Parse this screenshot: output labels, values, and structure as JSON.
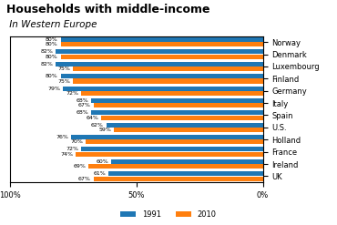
{
  "chart_data": {
    "type": "bar",
    "orientation": "horizontal",
    "title": "Households with middle-income",
    "subtitle": " In Western Europe",
    "categories": [
      "Norway",
      "Denmark",
      "Luxembourg",
      "Finland",
      "Germany",
      "Italy",
      "Spain",
      "U.S.",
      "Holland",
      "France",
      "Ireland",
      "UK"
    ],
    "series": [
      {
        "name": "1991",
        "values": [
          80,
          82,
          82,
          80,
          79,
          68,
          68,
          62,
          76,
          72,
          60,
          61
        ],
        "value_labels": [
          "80%",
          "82%",
          "82%",
          "80%",
          "79%",
          "68%",
          "68%",
          "62%",
          "76%",
          "72%",
          "60%",
          "61%"
        ]
      },
      {
        "name": "2010",
        "values": [
          80,
          80,
          75,
          75,
          72,
          67,
          64,
          59,
          70,
          74,
          69,
          67
        ],
        "value_labels": [
          "80%",
          "80%",
          "75%",
          "75%",
          "72%",
          "67%",
          "64%",
          "59%",
          "70%",
          "74%",
          "69%",
          "67%"
        ]
      }
    ],
    "xlim": [
      100,
      0
    ],
    "xticks": [
      {
        "value": 100,
        "label": "100%"
      },
      {
        "value": 50,
        "label": "50%"
      },
      {
        "value": 0,
        "label": "0%"
      }
    ],
    "data_labels": true,
    "legend": "lower center",
    "grid": false
  }
}
